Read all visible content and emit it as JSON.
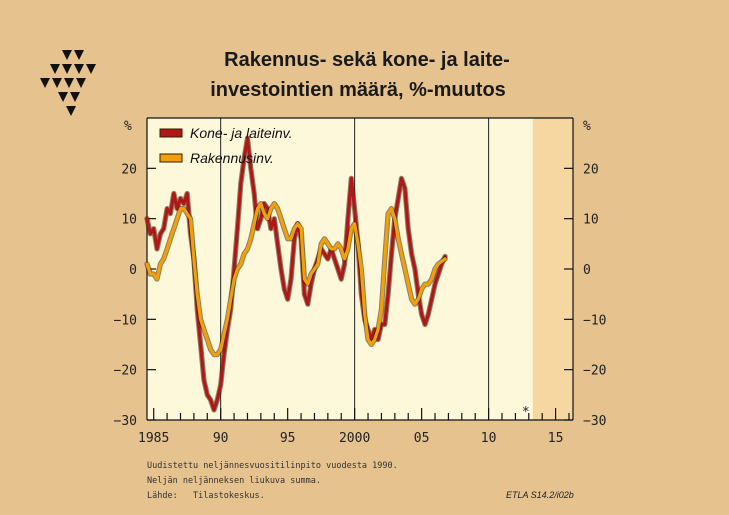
{
  "chart_data": {
    "type": "line",
    "title_lines": [
      "Rakennus- sekä kone- ja laite-",
      "investointien määrä, %-muutos"
    ],
    "y_unit_left": "%",
    "y_unit_right": "%",
    "ylim": [
      -30,
      30
    ],
    "yticks": [
      20,
      10,
      0,
      -10,
      -20,
      -30
    ],
    "ytick_labels": [
      "20",
      "10",
      "0",
      "−10",
      "−20",
      "−30"
    ],
    "xlim": [
      1984.5,
      2016.3
    ],
    "xtick_major": [
      1985,
      1990,
      1995,
      2000,
      2005,
      2010,
      2015
    ],
    "xtick_labels": [
      "1985",
      "90",
      "95",
      "2000",
      "05",
      "10",
      "15"
    ],
    "forecast_start": 2013.3,
    "forecast_marker": "*",
    "grid": "vertical lines at 1990, 2000, 2010",
    "legend_position": "top-left",
    "series": [
      {
        "name": "Kone- ja laiteinv.",
        "color": "#b01818",
        "points": [
          [
            1984.5,
            10
          ],
          [
            1984.75,
            7
          ],
          [
            1985,
            8
          ],
          [
            1985.25,
            4
          ],
          [
            1985.5,
            7
          ],
          [
            1985.75,
            8
          ],
          [
            1986,
            12
          ],
          [
            1986.25,
            11
          ],
          [
            1986.5,
            15
          ],
          [
            1986.75,
            12
          ],
          [
            1987,
            14
          ],
          [
            1987.25,
            13
          ],
          [
            1987.5,
            15
          ],
          [
            1987.75,
            7
          ],
          [
            1988,
            2
          ],
          [
            1988.25,
            -8
          ],
          [
            1988.5,
            -15
          ],
          [
            1988.75,
            -22
          ],
          [
            1989,
            -25
          ],
          [
            1989.25,
            -26
          ],
          [
            1989.5,
            -28
          ],
          [
            1989.75,
            -26
          ],
          [
            1990,
            -23
          ],
          [
            1990.25,
            -17
          ],
          [
            1990.5,
            -12
          ],
          [
            1990.75,
            -8
          ],
          [
            1991,
            0
          ],
          [
            1991.25,
            8
          ],
          [
            1991.5,
            17
          ],
          [
            1991.75,
            22
          ],
          [
            1992,
            26
          ],
          [
            1992.25,
            20
          ],
          [
            1992.5,
            15
          ],
          [
            1992.75,
            8
          ],
          [
            1993,
            10
          ],
          [
            1993.25,
            13
          ],
          [
            1993.5,
            12
          ],
          [
            1993.75,
            8
          ],
          [
            1994,
            10
          ],
          [
            1994.25,
            5
          ],
          [
            1994.5,
            0
          ],
          [
            1994.75,
            -4
          ],
          [
            1995,
            -6
          ],
          [
            1995.25,
            -2
          ],
          [
            1995.5,
            6
          ],
          [
            1995.75,
            9
          ],
          [
            1996,
            6
          ],
          [
            1996.25,
            -5
          ],
          [
            1996.5,
            -7
          ],
          [
            1996.75,
            -3
          ],
          [
            1997,
            0
          ],
          [
            1997.25,
            2
          ],
          [
            1997.5,
            4
          ],
          [
            1997.75,
            3
          ],
          [
            1998,
            2
          ],
          [
            1998.25,
            4
          ],
          [
            1998.5,
            2
          ],
          [
            1998.75,
            0
          ],
          [
            1999,
            -2
          ],
          [
            1999.25,
            1
          ],
          [
            1999.5,
            10
          ],
          [
            1999.75,
            18
          ],
          [
            2000,
            12
          ],
          [
            2000.25,
            5
          ],
          [
            2000.5,
            -5
          ],
          [
            2000.75,
            -10
          ],
          [
            2001,
            -12
          ],
          [
            2001.25,
            -14
          ],
          [
            2001.5,
            -12
          ],
          [
            2001.75,
            -14
          ],
          [
            2002,
            -11
          ],
          [
            2002.25,
            -11
          ],
          [
            2002.5,
            -5
          ],
          [
            2002.75,
            3
          ],
          [
            2003,
            10
          ],
          [
            2003.25,
            14
          ],
          [
            2003.5,
            18
          ],
          [
            2003.75,
            16
          ],
          [
            2004,
            8
          ],
          [
            2004.25,
            3
          ],
          [
            2004.5,
            0
          ],
          [
            2004.75,
            -5
          ],
          [
            2005,
            -9
          ],
          [
            2005.25,
            -11
          ],
          [
            2005.5,
            -9
          ],
          [
            2005.75,
            -6
          ],
          [
            2006,
            -3
          ],
          [
            2006.25,
            -1
          ],
          [
            2006.5,
            1
          ],
          [
            2006.75,
            2.5
          ]
        ]
      },
      {
        "name": "Rakennusinv.",
        "color": "#f0a008",
        "points": [
          [
            1984.5,
            1
          ],
          [
            1984.75,
            -1
          ],
          [
            1985,
            -1
          ],
          [
            1985.25,
            -2
          ],
          [
            1985.5,
            1
          ],
          [
            1985.75,
            2
          ],
          [
            1986,
            4
          ],
          [
            1986.25,
            6
          ],
          [
            1986.5,
            8
          ],
          [
            1986.75,
            10
          ],
          [
            1987,
            12
          ],
          [
            1987.25,
            12
          ],
          [
            1987.5,
            11
          ],
          [
            1987.75,
            10
          ],
          [
            1988,
            2
          ],
          [
            1988.25,
            -5
          ],
          [
            1988.5,
            -10
          ],
          [
            1988.75,
            -12
          ],
          [
            1989,
            -14
          ],
          [
            1989.25,
            -16
          ],
          [
            1989.5,
            -17
          ],
          [
            1989.75,
            -17
          ],
          [
            1990,
            -16
          ],
          [
            1990.25,
            -13
          ],
          [
            1990.5,
            -10
          ],
          [
            1990.75,
            -6
          ],
          [
            1991,
            -2
          ],
          [
            1991.25,
            0
          ],
          [
            1991.5,
            1
          ],
          [
            1991.75,
            3
          ],
          [
            1992,
            4
          ],
          [
            1992.25,
            6
          ],
          [
            1992.5,
            9
          ],
          [
            1992.75,
            12
          ],
          [
            1993,
            13
          ],
          [
            1993.25,
            11
          ],
          [
            1993.5,
            10
          ],
          [
            1993.75,
            12
          ],
          [
            1994,
            13
          ],
          [
            1994.25,
            12
          ],
          [
            1994.5,
            10
          ],
          [
            1994.75,
            8
          ],
          [
            1995,
            6
          ],
          [
            1995.25,
            6
          ],
          [
            1995.5,
            8
          ],
          [
            1995.75,
            9
          ],
          [
            1996,
            8
          ],
          [
            1996.25,
            -2
          ],
          [
            1996.5,
            -3
          ],
          [
            1996.75,
            -1
          ],
          [
            1997,
            0
          ],
          [
            1997.25,
            1
          ],
          [
            1997.5,
            5
          ],
          [
            1997.75,
            6
          ],
          [
            1998,
            5
          ],
          [
            1998.25,
            4
          ],
          [
            1998.5,
            4
          ],
          [
            1998.75,
            5
          ],
          [
            1999,
            4
          ],
          [
            1999.25,
            2
          ],
          [
            1999.5,
            4
          ],
          [
            1999.75,
            8
          ],
          [
            2000,
            9
          ],
          [
            2000.25,
            5
          ],
          [
            2000.5,
            0
          ],
          [
            2000.75,
            -9
          ],
          [
            2001,
            -14
          ],
          [
            2001.25,
            -15
          ],
          [
            2001.5,
            -14
          ],
          [
            2001.75,
            -12
          ],
          [
            2002,
            -8
          ],
          [
            2002.25,
            2
          ],
          [
            2002.5,
            11
          ],
          [
            2002.75,
            12
          ],
          [
            2003,
            10
          ],
          [
            2003.25,
            6
          ],
          [
            2003.5,
            3
          ],
          [
            2003.75,
            0
          ],
          [
            2004,
            -3
          ],
          [
            2004.25,
            -6
          ],
          [
            2004.5,
            -7
          ],
          [
            2004.75,
            -6
          ],
          [
            2005,
            -4
          ],
          [
            2005.25,
            -3
          ],
          [
            2005.5,
            -3
          ],
          [
            2005.75,
            -2
          ],
          [
            2006,
            0
          ],
          [
            2006.25,
            1
          ],
          [
            2006.5,
            1.5
          ],
          [
            2006.75,
            2
          ]
        ]
      }
    ]
  },
  "footnotes": [
    "Uudistettu neljännesvuositilinpito vuodesta 1990.",
    "Neljän neljänneksen liukuva summa.",
    "Lähde:   Tilastokeskus."
  ],
  "credit": "ETLA S14.2/i02b",
  "colors": {
    "page_background": "#e6c28e",
    "plot_background": "#fdf8da",
    "forecast_shade": "#f6d7a1"
  },
  "logo": "ETLA triangle logo"
}
